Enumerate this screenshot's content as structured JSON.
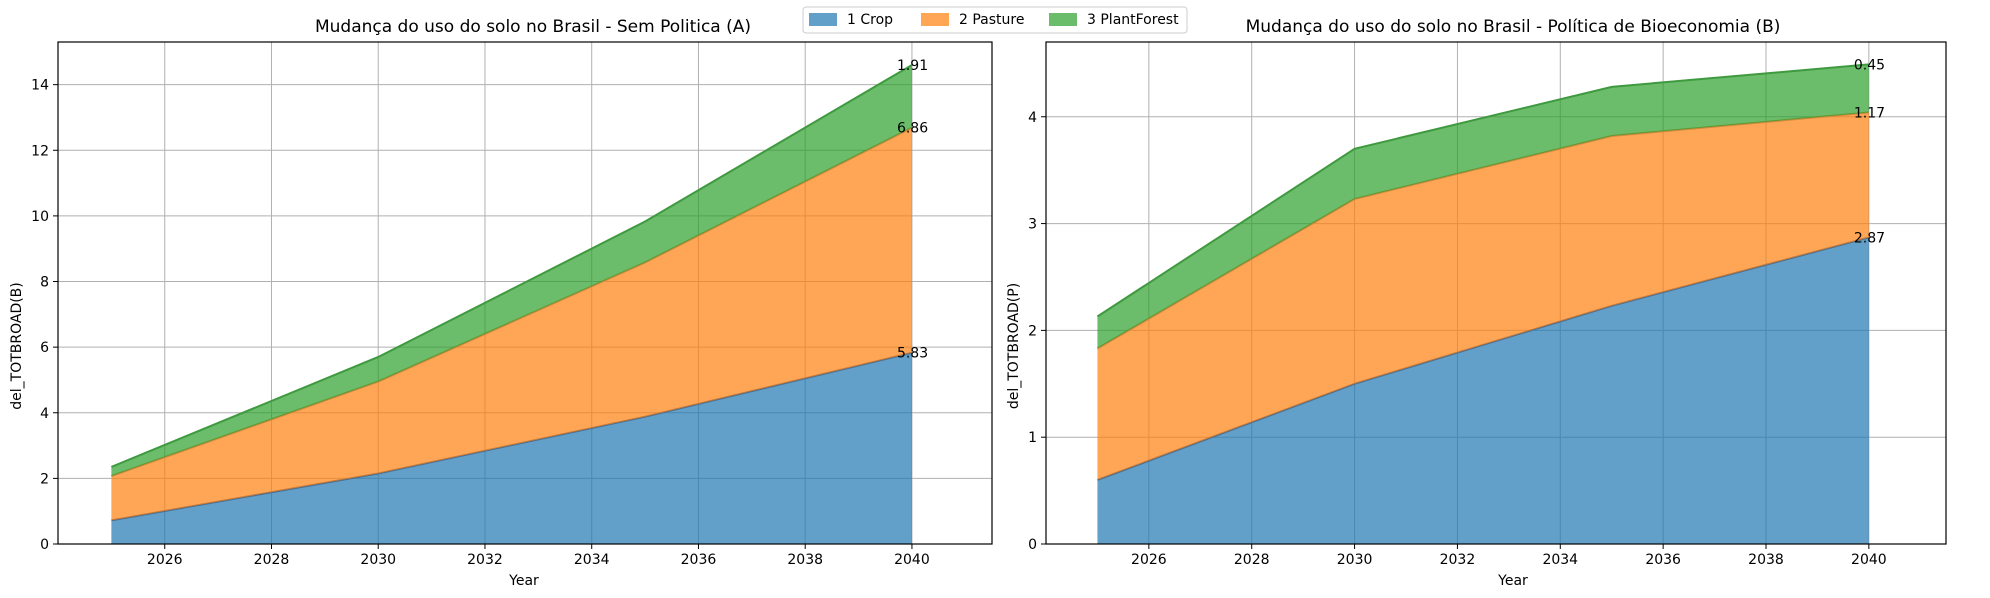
{
  "colors": {
    "crop": "#1f77b4",
    "pasture": "#ff7f0e",
    "plantforest": "#2ca02c"
  },
  "legend": {
    "placement": "top-center",
    "items": [
      {
        "label": "1 Crop",
        "key": "crop"
      },
      {
        "label": "2 Pasture",
        "key": "pasture"
      },
      {
        "label": "3 PlantForest",
        "key": "plantforest"
      }
    ]
  },
  "chart_data": [
    {
      "type": "area",
      "stacked": true,
      "title": "Mudança do uso do solo no Brasil - Sem Politica (A)",
      "xlabel": "Year",
      "ylabel": "del_TOTBROAD(B)",
      "x": [
        2025,
        2030,
        2035,
        2040
      ],
      "xlim": [
        2024,
        2041.5
      ],
      "ylim": [
        0,
        15.3
      ],
      "xticks": [
        2026,
        2028,
        2030,
        2032,
        2034,
        2036,
        2038,
        2040
      ],
      "yticks": [
        0,
        2,
        4,
        6,
        8,
        10,
        12,
        14
      ],
      "grid": true,
      "series": [
        {
          "name": "1 Crop",
          "key": "crop",
          "values": [
            0.72,
            2.15,
            3.88,
            5.83
          ]
        },
        {
          "name": "2 Pasture",
          "key": "pasture",
          "values": [
            1.35,
            2.8,
            4.7,
            6.86
          ]
        },
        {
          "name": "3 PlantForest",
          "key": "plantforest",
          "values": [
            0.28,
            0.75,
            1.25,
            1.91
          ]
        }
      ],
      "annotations": [
        {
          "text": "5.83",
          "x": 2040,
          "y": 5.83
        },
        {
          "text": "6.86",
          "x": 2040,
          "y": 12.69
        },
        {
          "text": "1.91",
          "x": 2040,
          "y": 14.6
        }
      ]
    },
    {
      "type": "area",
      "stacked": true,
      "title": "Mudança do uso do solo no Brasil - Política de Bioeconomia (B)",
      "xlabel": "Year",
      "ylabel": "del_TOTBROAD(P)",
      "x": [
        2025,
        2030,
        2035,
        2040
      ],
      "xlim": [
        2024,
        2041.5
      ],
      "ylim": [
        0,
        4.7
      ],
      "xticks": [
        2026,
        2028,
        2030,
        2032,
        2034,
        2036,
        2038,
        2040
      ],
      "yticks": [
        0,
        1,
        2,
        3,
        4
      ],
      "grid": true,
      "series": [
        {
          "name": "1 Crop",
          "key": "crop",
          "values": [
            0.6,
            1.5,
            2.23,
            2.87
          ]
        },
        {
          "name": "2 Pasture",
          "key": "pasture",
          "values": [
            1.23,
            1.73,
            1.59,
            1.17
          ]
        },
        {
          "name": "3 PlantForest",
          "key": "plantforest",
          "values": [
            0.3,
            0.47,
            0.46,
            0.45
          ]
        }
      ],
      "annotations": [
        {
          "text": "2.87",
          "x": 2040,
          "y": 2.87
        },
        {
          "text": "1.17",
          "x": 2040,
          "y": 4.04
        },
        {
          "text": "0.45",
          "x": 2040,
          "y": 4.49
        }
      ]
    }
  ]
}
